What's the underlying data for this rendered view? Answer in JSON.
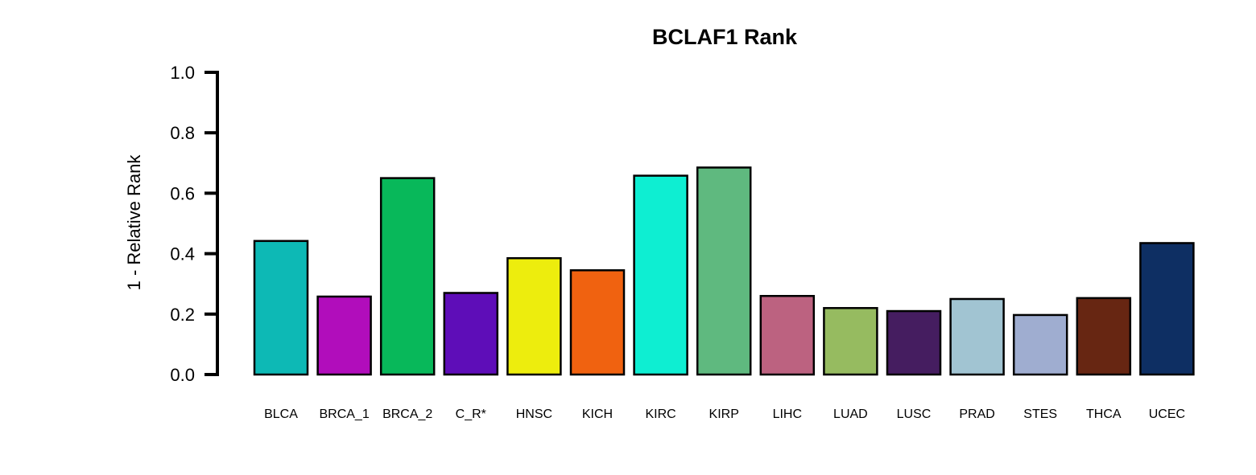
{
  "chart_data": {
    "type": "bar",
    "title": "BCLAF1 Rank",
    "xlabel": "",
    "ylabel": "1 - Relative Rank",
    "ylim": [
      0,
      1.0
    ],
    "yticks": [
      "0.0",
      "0.2",
      "0.4",
      "0.6",
      "0.8",
      "1.0"
    ],
    "grid": false,
    "legend": "none",
    "categories": [
      "BLCA",
      "BRCA_1",
      "BRCA_2",
      "C_R*",
      "HNSC",
      "KICH",
      "KIRC",
      "KIRP",
      "LIHC",
      "LUAD",
      "LUSC",
      "PRAD",
      "STES",
      "THCA",
      "UCEC"
    ],
    "values": [
      0.442,
      0.258,
      0.65,
      0.27,
      0.385,
      0.345,
      0.658,
      0.685,
      0.26,
      0.22,
      0.21,
      0.25,
      0.197,
      0.253,
      0.435
    ],
    "colors": [
      "#0DB9B5",
      "#B10DBB",
      "#08B85A",
      "#5E0DB8",
      "#EDED0D",
      "#F06210",
      "#0EEED2",
      "#5FB97F",
      "#BC6280",
      "#96BB60",
      "#451D60",
      "#A1C4D2",
      "#9FADD0",
      "#672612",
      "#0E2F63"
    ]
  }
}
